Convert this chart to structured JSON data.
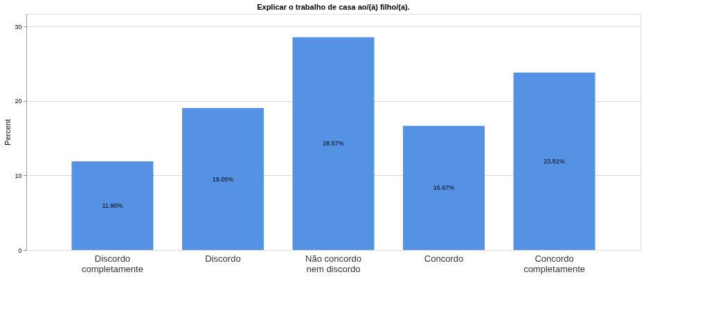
{
  "chart_data": {
    "type": "bar",
    "title": "Explicar o trabalho de casa ao/(à) filho/(a).",
    "ylabel": "Percent",
    "categories": [
      "Discordo completamente",
      "Discordo",
      "Não concordo nem discordo",
      "Concordo",
      "Concordo completamente"
    ],
    "values": [
      11.9,
      19.05,
      28.57,
      16.67,
      23.81
    ],
    "value_labels": [
      "11.90%",
      "19.05%",
      "28.57%",
      "16.67%",
      "23.81%"
    ],
    "color": "#5592e3",
    "ylim": [
      0,
      31.7
    ],
    "yticks": [
      0,
      10,
      20,
      30
    ],
    "grid": "y"
  }
}
